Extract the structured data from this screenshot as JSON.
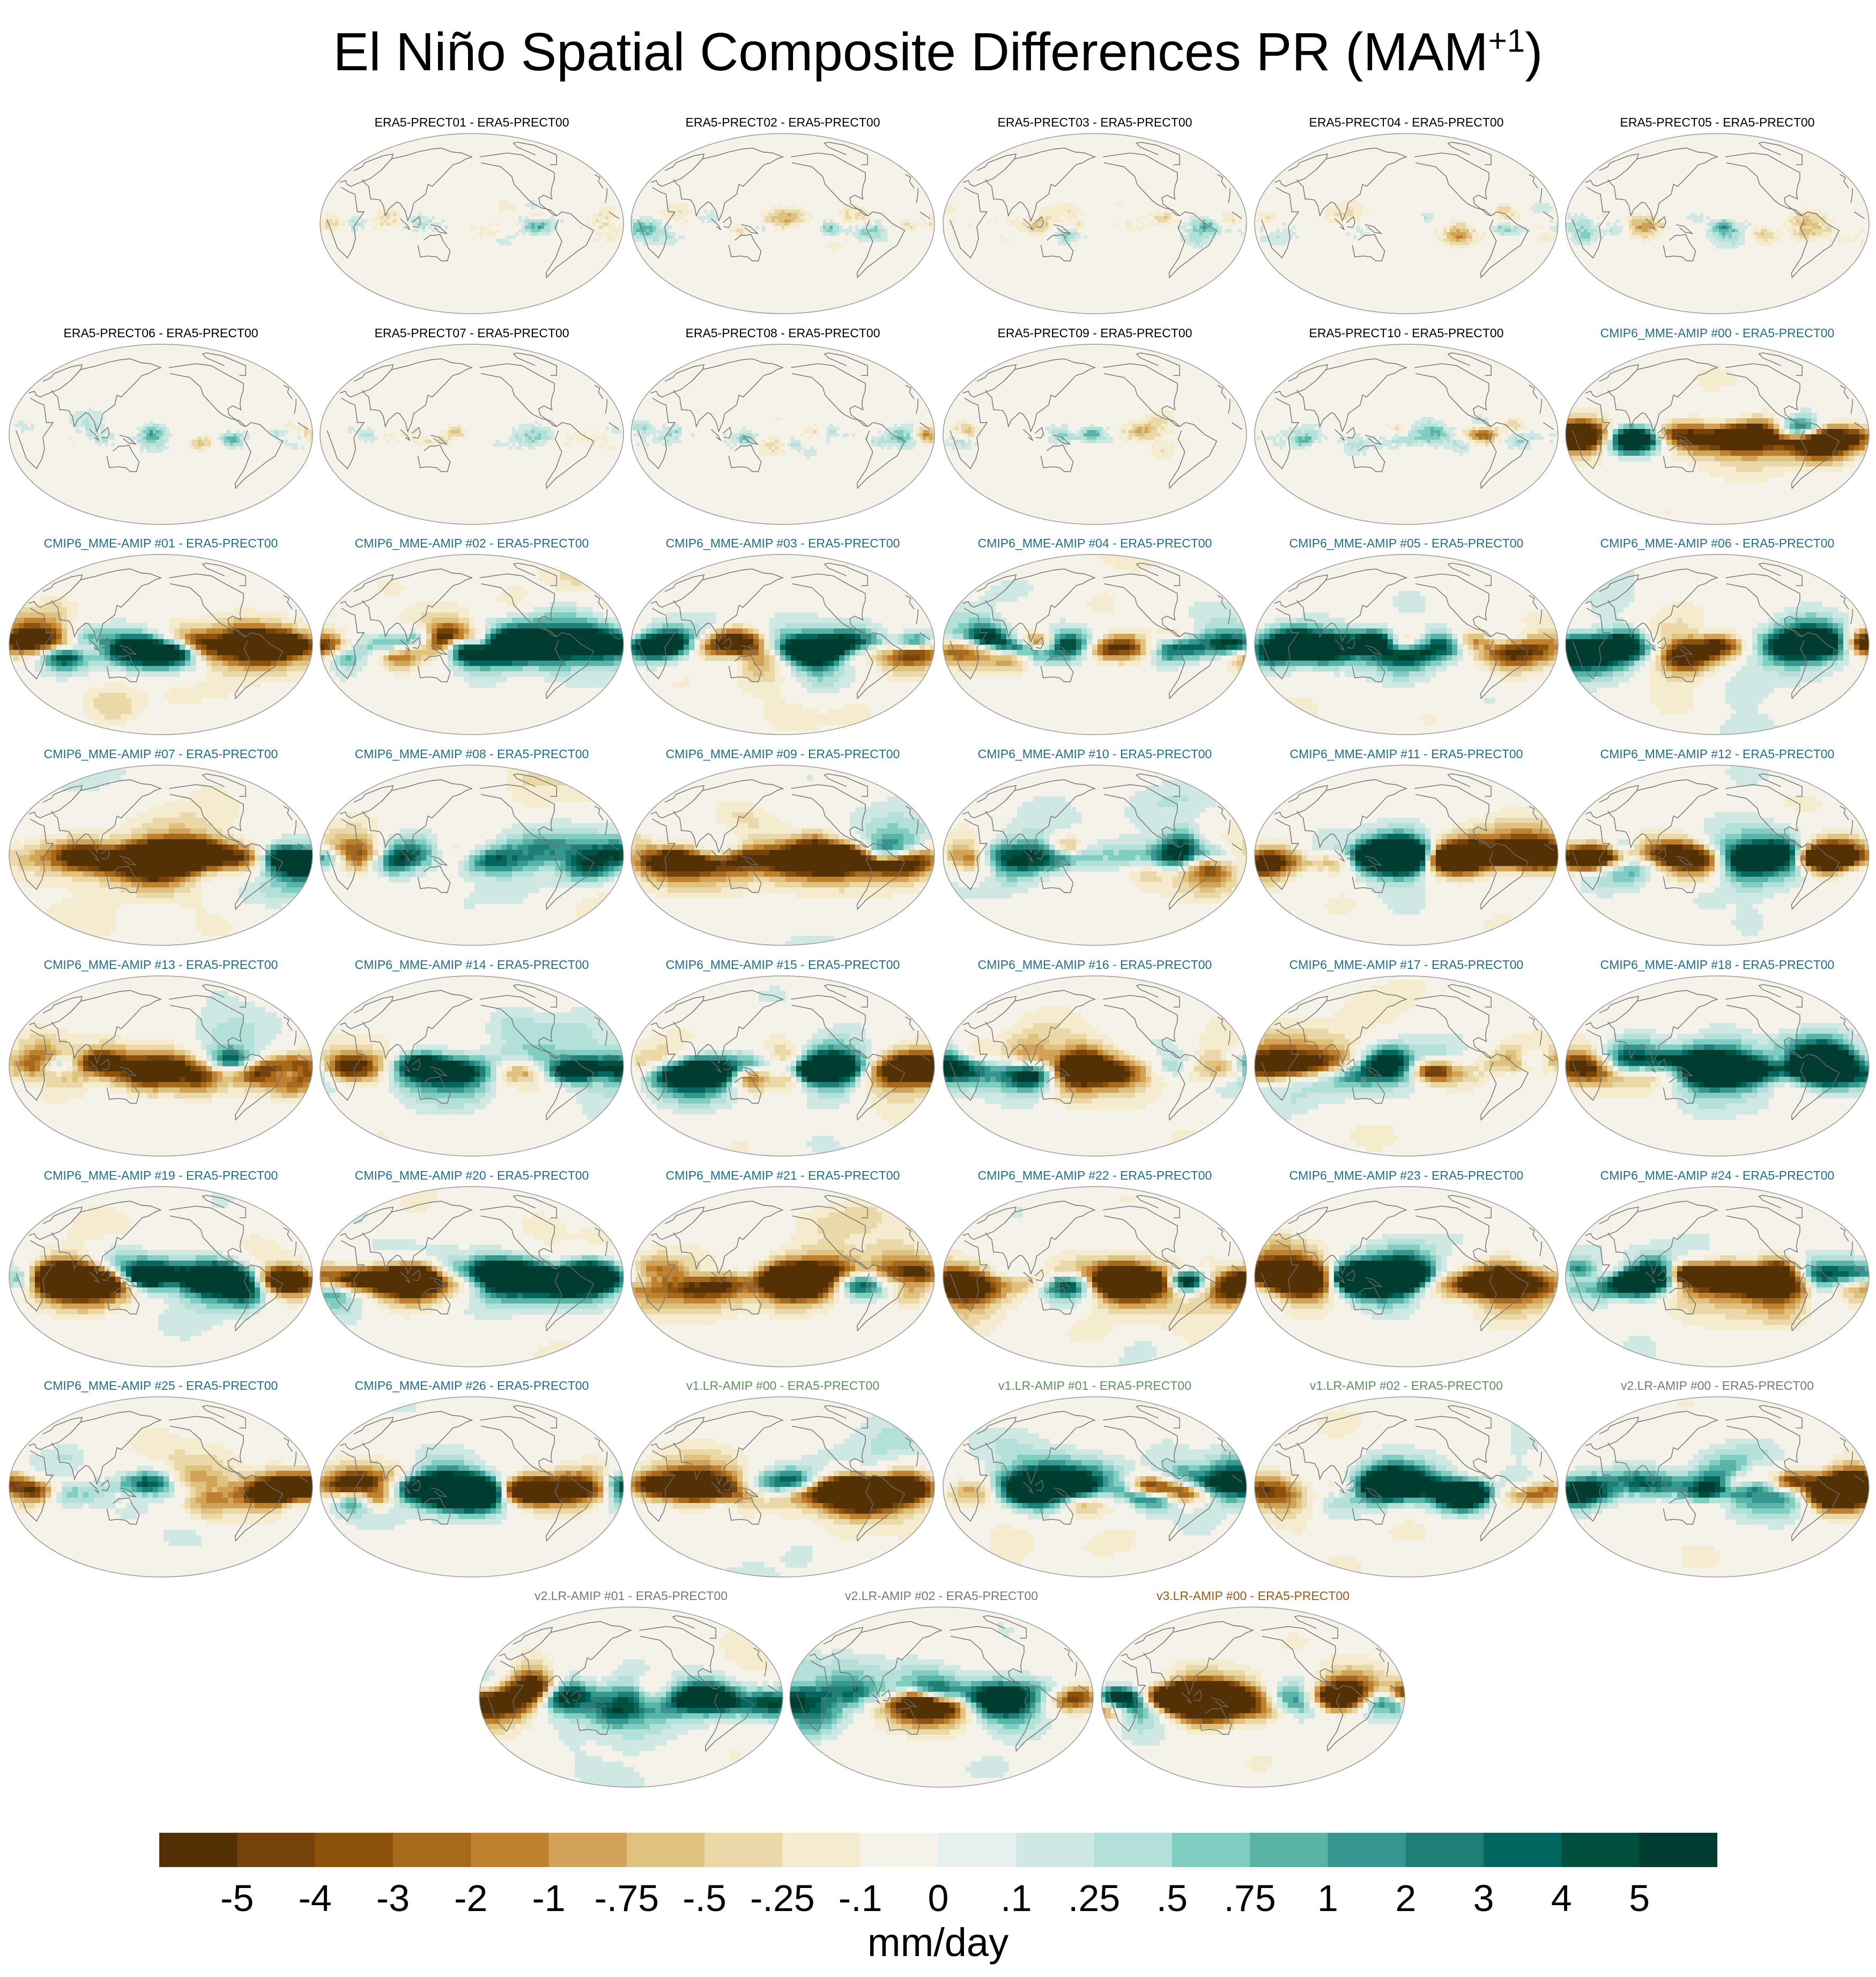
{
  "title": {
    "main": "El Niño Spatial Composite Differences PR (MAM",
    "sup": "+1",
    "close": ")"
  },
  "chart_data": {
    "type": "heatmap",
    "title": "El Niño Spatial Composite Differences PR (MAM+1)",
    "projection": "robinson-like global map",
    "panels": [
      {
        "label": "ERA5-PRECT01 - ERA5-PRECT00",
        "group": "era5",
        "row": 0,
        "col": 1
      },
      {
        "label": "ERA5-PRECT02 - ERA5-PRECT00",
        "group": "era5",
        "row": 0,
        "col": 2
      },
      {
        "label": "ERA5-PRECT03 - ERA5-PRECT00",
        "group": "era5",
        "row": 0,
        "col": 3
      },
      {
        "label": "ERA5-PRECT04 - ERA5-PRECT00",
        "group": "era5",
        "row": 0,
        "col": 4
      },
      {
        "label": "ERA5-PRECT05 - ERA5-PRECT00",
        "group": "era5",
        "row": 0,
        "col": 5
      },
      {
        "label": "ERA5-PRECT06 - ERA5-PRECT00",
        "group": "era5",
        "row": 1,
        "col": 0
      },
      {
        "label": "ERA5-PRECT07 - ERA5-PRECT00",
        "group": "era5",
        "row": 1,
        "col": 1
      },
      {
        "label": "ERA5-PRECT08 - ERA5-PRECT00",
        "group": "era5",
        "row": 1,
        "col": 2
      },
      {
        "label": "ERA5-PRECT09 - ERA5-PRECT00",
        "group": "era5",
        "row": 1,
        "col": 3
      },
      {
        "label": "ERA5-PRECT10 - ERA5-PRECT00",
        "group": "era5",
        "row": 1,
        "col": 4
      },
      {
        "label": "CMIP6_MME-AMIP  #00 - ERA5-PRECT00",
        "group": "cmip6",
        "row": 1,
        "col": 5
      },
      {
        "label": "CMIP6_MME-AMIP  #01 - ERA5-PRECT00",
        "group": "cmip6",
        "row": 2,
        "col": 0
      },
      {
        "label": "CMIP6_MME-AMIP  #02 - ERA5-PRECT00",
        "group": "cmip6",
        "row": 2,
        "col": 1
      },
      {
        "label": "CMIP6_MME-AMIP  #03 - ERA5-PRECT00",
        "group": "cmip6",
        "row": 2,
        "col": 2
      },
      {
        "label": "CMIP6_MME-AMIP  #04 - ERA5-PRECT00",
        "group": "cmip6",
        "row": 2,
        "col": 3
      },
      {
        "label": "CMIP6_MME-AMIP  #05 - ERA5-PRECT00",
        "group": "cmip6",
        "row": 2,
        "col": 4
      },
      {
        "label": "CMIP6_MME-AMIP  #06 - ERA5-PRECT00",
        "group": "cmip6",
        "row": 2,
        "col": 5
      },
      {
        "label": "CMIP6_MME-AMIP  #07 - ERA5-PRECT00",
        "group": "cmip6",
        "row": 3,
        "col": 0
      },
      {
        "label": "CMIP6_MME-AMIP  #08 - ERA5-PRECT00",
        "group": "cmip6",
        "row": 3,
        "col": 1
      },
      {
        "label": "CMIP6_MME-AMIP  #09 - ERA5-PRECT00",
        "group": "cmip6",
        "row": 3,
        "col": 2
      },
      {
        "label": "CMIP6_MME-AMIP  #10 - ERA5-PRECT00",
        "group": "cmip6",
        "row": 3,
        "col": 3
      },
      {
        "label": "CMIP6_MME-AMIP  #11 - ERA5-PRECT00",
        "group": "cmip6",
        "row": 3,
        "col": 4
      },
      {
        "label": "CMIP6_MME-AMIP  #12 - ERA5-PRECT00",
        "group": "cmip6",
        "row": 3,
        "col": 5
      },
      {
        "label": "CMIP6_MME-AMIP  #13 - ERA5-PRECT00",
        "group": "cmip6",
        "row": 4,
        "col": 0
      },
      {
        "label": "CMIP6_MME-AMIP  #14 - ERA5-PRECT00",
        "group": "cmip6",
        "row": 4,
        "col": 1
      },
      {
        "label": "CMIP6_MME-AMIP  #15 - ERA5-PRECT00",
        "group": "cmip6",
        "row": 4,
        "col": 2
      },
      {
        "label": "CMIP6_MME-AMIP  #16 - ERA5-PRECT00",
        "group": "cmip6",
        "row": 4,
        "col": 3
      },
      {
        "label": "CMIP6_MME-AMIP  #17 - ERA5-PRECT00",
        "group": "cmip6",
        "row": 4,
        "col": 4
      },
      {
        "label": "CMIP6_MME-AMIP  #18 - ERA5-PRECT00",
        "group": "cmip6",
        "row": 4,
        "col": 5
      },
      {
        "label": "CMIP6_MME-AMIP  #19 - ERA5-PRECT00",
        "group": "cmip6",
        "row": 5,
        "col": 0
      },
      {
        "label": "CMIP6_MME-AMIP  #20 - ERA5-PRECT00",
        "group": "cmip6",
        "row": 5,
        "col": 1
      },
      {
        "label": "CMIP6_MME-AMIP  #21 - ERA5-PRECT00",
        "group": "cmip6",
        "row": 5,
        "col": 2
      },
      {
        "label": "CMIP6_MME-AMIP  #22 - ERA5-PRECT00",
        "group": "cmip6",
        "row": 5,
        "col": 3
      },
      {
        "label": "CMIP6_MME-AMIP  #23 - ERA5-PRECT00",
        "group": "cmip6",
        "row": 5,
        "col": 4
      },
      {
        "label": "CMIP6_MME-AMIP  #24 - ERA5-PRECT00",
        "group": "cmip6",
        "row": 5,
        "col": 5
      },
      {
        "label": "CMIP6_MME-AMIP  #25 - ERA5-PRECT00",
        "group": "cmip6",
        "row": 6,
        "col": 0
      },
      {
        "label": "CMIP6_MME-AMIP  #26 - ERA5-PRECT00",
        "group": "cmip6",
        "row": 6,
        "col": 1
      },
      {
        "label": "v1.LR-AMIP  #00 - ERA5-PRECT00",
        "group": "v1",
        "row": 6,
        "col": 2
      },
      {
        "label": "v1.LR-AMIP  #01 - ERA5-PRECT00",
        "group": "v1",
        "row": 6,
        "col": 3
      },
      {
        "label": "v1.LR-AMIP  #02 - ERA5-PRECT00",
        "group": "v1",
        "row": 6,
        "col": 4
      },
      {
        "label": "v2.LR-AMIP  #00 - ERA5-PRECT00",
        "group": "v2",
        "row": 6,
        "col": 5
      },
      {
        "label": "v2.LR-AMIP  #01 - ERA5-PRECT00",
        "group": "v2",
        "row": 7,
        "col": 0
      },
      {
        "label": "v2.LR-AMIP  #02 - ERA5-PRECT00",
        "group": "v2",
        "row": 7,
        "col": 1
      },
      {
        "label": "v3.LR-AMIP  #00 - ERA5-PRECT00",
        "group": "v3",
        "row": 7,
        "col": 2
      }
    ],
    "colorbar": {
      "unit": "mm/day",
      "tick_labels": [
        "-5",
        "-4",
        "-3",
        "-2",
        "-1",
        "-.75",
        "-.5",
        "-.25",
        "-.1",
        "0",
        ".1",
        ".25",
        ".5",
        ".75",
        "1",
        "2",
        "3",
        "4",
        "5"
      ],
      "colors": [
        "#543005",
        "#74420a",
        "#8c510a",
        "#a76a1c",
        "#bf812d",
        "#d1a258",
        "#dfc27d",
        "#ebd8a8",
        "#f5ecd0",
        "#f5f2ea",
        "#e6f0ee",
        "#cfe8e3",
        "#b3e0d8",
        "#80cdc1",
        "#5ab3a7",
        "#35978f",
        "#1d7f76",
        "#01665e",
        "#00503e",
        "#003c30"
      ]
    }
  }
}
